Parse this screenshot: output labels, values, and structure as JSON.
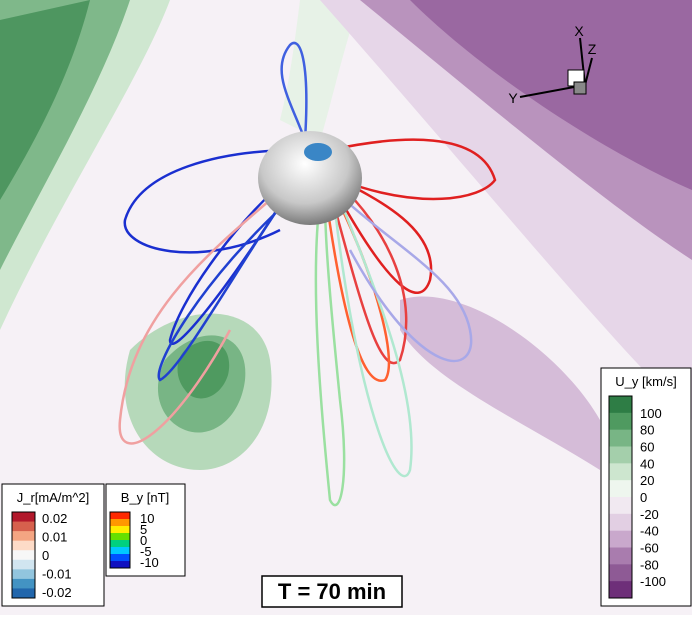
{
  "figure": {
    "time_label": "T = 70 min",
    "triad": {
      "x": "X",
      "y": "Y",
      "z": "Z"
    },
    "legends": [
      {
        "title": "U_y [km/s]",
        "ticks": [
          "100",
          "80",
          "60",
          "40",
          "20",
          "0",
          "-20",
          "-40",
          "-60",
          "-80",
          "-100"
        ],
        "colors": [
          "#2e7d45",
          "#4f9a60",
          "#78b585",
          "#a4cfab",
          "#cde6cf",
          "#eef6ee",
          "#f1e9f1",
          "#e2cfe3",
          "#c9a8cc",
          "#a97cae",
          "#8e5a95",
          "#6e2f79"
        ]
      },
      {
        "title": "J_r[mA/m^2]",
        "ticks": [
          "0.02",
          "0.01",
          "0",
          "-0.01",
          "-0.02"
        ],
        "colors": [
          "#b2182b",
          "#d6604d",
          "#f4a582",
          "#fddbc7",
          "#f7f7f7",
          "#d1e5f0",
          "#92c5de",
          "#4393c3",
          "#2166ac"
        ]
      },
      {
        "title": "B_y [nT]",
        "ticks": [
          "10",
          "5",
          "0",
          "-5",
          "-10"
        ],
        "colors": [
          "#ff2a00",
          "#ff9900",
          "#ffee00",
          "#66e000",
          "#00d080",
          "#00c8ff",
          "#0050ff",
          "#1010c0"
        ]
      }
    ]
  }
}
